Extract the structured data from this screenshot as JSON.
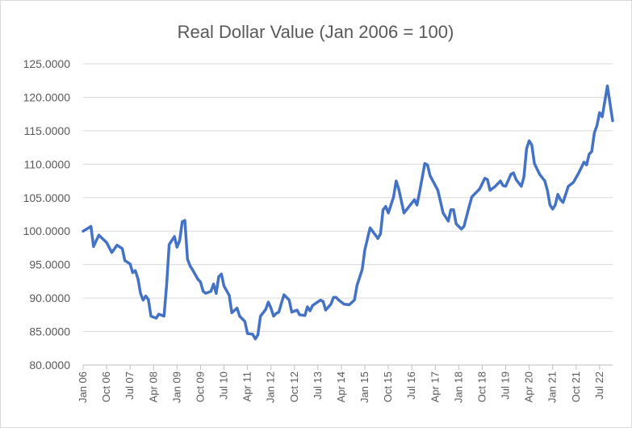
{
  "chart_data": {
    "type": "line",
    "title": "Real Dollar Value (Jan 2006 = 100)",
    "xlabel": "",
    "ylabel": "",
    "ylim": [
      80,
      125
    ],
    "y_ticks": [
      "80.0000",
      "85.0000",
      "90.0000",
      "95.0000",
      "100.0000",
      "105.0000",
      "110.0000",
      "115.0000",
      "120.0000",
      "125.0000"
    ],
    "x_range_months": [
      0,
      203
    ],
    "x_unit": "months since Jan 2006",
    "x_tick_step_months": 9,
    "x_ticks": [
      "Jan 06",
      "Oct 06",
      "Jul 07",
      "Apr 08",
      "Jan 09",
      "Oct 09",
      "Jul 10",
      "Apr 11",
      "Jan 12",
      "Oct 12",
      "Jul 13",
      "Apr 14",
      "Jan 15",
      "Oct 15",
      "Jul 16",
      "Apr 17",
      "Jan 18",
      "Oct 18",
      "Jul 19",
      "Apr 20",
      "Jan 21",
      "Oct 21",
      "Jul 22"
    ],
    "grid": "horizontal",
    "legend": "none",
    "series": [
      {
        "name": "Real Dollar Value",
        "color": "#4472C4",
        "points": [
          [
            0,
            100.0
          ],
          [
            3,
            100.7
          ],
          [
            4,
            97.7
          ],
          [
            6,
            99.4
          ],
          [
            9,
            98.3
          ],
          [
            11,
            96.8
          ],
          [
            13,
            97.9
          ],
          [
            15,
            97.4
          ],
          [
            16,
            95.6
          ],
          [
            18,
            95.1
          ],
          [
            19,
            93.8
          ],
          [
            20,
            94.1
          ],
          [
            21,
            92.9
          ],
          [
            22,
            90.7
          ],
          [
            23,
            89.7
          ],
          [
            24,
            90.3
          ],
          [
            25,
            89.8
          ],
          [
            26,
            87.3
          ],
          [
            28,
            87.0
          ],
          [
            29,
            87.6
          ],
          [
            31,
            87.3
          ],
          [
            32,
            91.9
          ],
          [
            33,
            98.0
          ],
          [
            35,
            99.2
          ],
          [
            36,
            97.6
          ],
          [
            37,
            98.6
          ],
          [
            38,
            101.4
          ],
          [
            39,
            101.6
          ],
          [
            40,
            95.8
          ],
          [
            41,
            94.8
          ],
          [
            42,
            94.2
          ],
          [
            44,
            92.8
          ],
          [
            45,
            92.4
          ],
          [
            46,
            91.0
          ],
          [
            47,
            90.7
          ],
          [
            49,
            91.0
          ],
          [
            50,
            92.1
          ],
          [
            51,
            90.7
          ],
          [
            52,
            93.2
          ],
          [
            53,
            93.6
          ],
          [
            54,
            91.8
          ],
          [
            56,
            90.4
          ],
          [
            57,
            87.8
          ],
          [
            59,
            88.5
          ],
          [
            60,
            87.3
          ],
          [
            62,
            86.5
          ],
          [
            63,
            84.7
          ],
          [
            65,
            84.6
          ],
          [
            66,
            83.9
          ],
          [
            67,
            84.5
          ],
          [
            68,
            87.3
          ],
          [
            70,
            88.3
          ],
          [
            71,
            89.4
          ],
          [
            72,
            88.5
          ],
          [
            73,
            87.3
          ],
          [
            74,
            87.7
          ],
          [
            75,
            87.9
          ],
          [
            77,
            90.5
          ],
          [
            79,
            89.7
          ],
          [
            80,
            87.9
          ],
          [
            82,
            88.2
          ],
          [
            83,
            87.5
          ],
          [
            85,
            87.4
          ],
          [
            86,
            88.7
          ],
          [
            87,
            88.1
          ],
          [
            88,
            88.9
          ],
          [
            91,
            89.7
          ],
          [
            92,
            89.5
          ],
          [
            93,
            88.2
          ],
          [
            95,
            89.1
          ],
          [
            96,
            90.1
          ],
          [
            97,
            90.1
          ],
          [
            98,
            89.7
          ],
          [
            100,
            89.1
          ],
          [
            102,
            89.0
          ],
          [
            104,
            89.7
          ],
          [
            105,
            91.9
          ],
          [
            107,
            94.3
          ],
          [
            108,
            97.2
          ],
          [
            110,
            100.5
          ],
          [
            113,
            98.9
          ],
          [
            114,
            99.6
          ],
          [
            115,
            103.2
          ],
          [
            116,
            103.7
          ],
          [
            117,
            102.7
          ],
          [
            119,
            105.1
          ],
          [
            120,
            107.5
          ],
          [
            121,
            106.3
          ],
          [
            123,
            102.7
          ],
          [
            125,
            103.7
          ],
          [
            127,
            104.7
          ],
          [
            128,
            103.9
          ],
          [
            129,
            105.9
          ],
          [
            131,
            110.1
          ],
          [
            132,
            109.9
          ],
          [
            133,
            108.3
          ],
          [
            136,
            106.1
          ],
          [
            138,
            102.7
          ],
          [
            140,
            101.5
          ],
          [
            141,
            103.2
          ],
          [
            142,
            103.2
          ],
          [
            143,
            101.1
          ],
          [
            145,
            100.3
          ],
          [
            146,
            100.7
          ],
          [
            148,
            103.7
          ],
          [
            149,
            105.1
          ],
          [
            151,
            105.9
          ],
          [
            152,
            106.3
          ],
          [
            154,
            107.9
          ],
          [
            155,
            107.7
          ],
          [
            156,
            106.1
          ],
          [
            158,
            106.7
          ],
          [
            160,
            107.5
          ],
          [
            161,
            106.8
          ],
          [
            162,
            106.7
          ],
          [
            164,
            108.5
          ],
          [
            165,
            108.7
          ],
          [
            166,
            107.7
          ],
          [
            168,
            106.7
          ],
          [
            169,
            108.1
          ],
          [
            170,
            112.3
          ],
          [
            171,
            113.5
          ],
          [
            172,
            112.9
          ],
          [
            173,
            110.1
          ],
          [
            175,
            108.5
          ],
          [
            177,
            107.5
          ],
          [
            178,
            106.1
          ],
          [
            179,
            103.9
          ],
          [
            180,
            103.3
          ],
          [
            181,
            103.9
          ],
          [
            182,
            105.5
          ],
          [
            183,
            104.7
          ],
          [
            184,
            104.3
          ],
          [
            186,
            106.7
          ],
          [
            188,
            107.3
          ],
          [
            190,
            108.7
          ],
          [
            192,
            110.3
          ],
          [
            193,
            109.9
          ],
          [
            194,
            111.5
          ],
          [
            195,
            111.9
          ],
          [
            196,
            114.7
          ],
          [
            197,
            115.8
          ],
          [
            198,
            117.7
          ],
          [
            199,
            117.1
          ],
          [
            201,
            121.7
          ],
          [
            203,
            116.5
          ]
        ]
      }
    ]
  }
}
